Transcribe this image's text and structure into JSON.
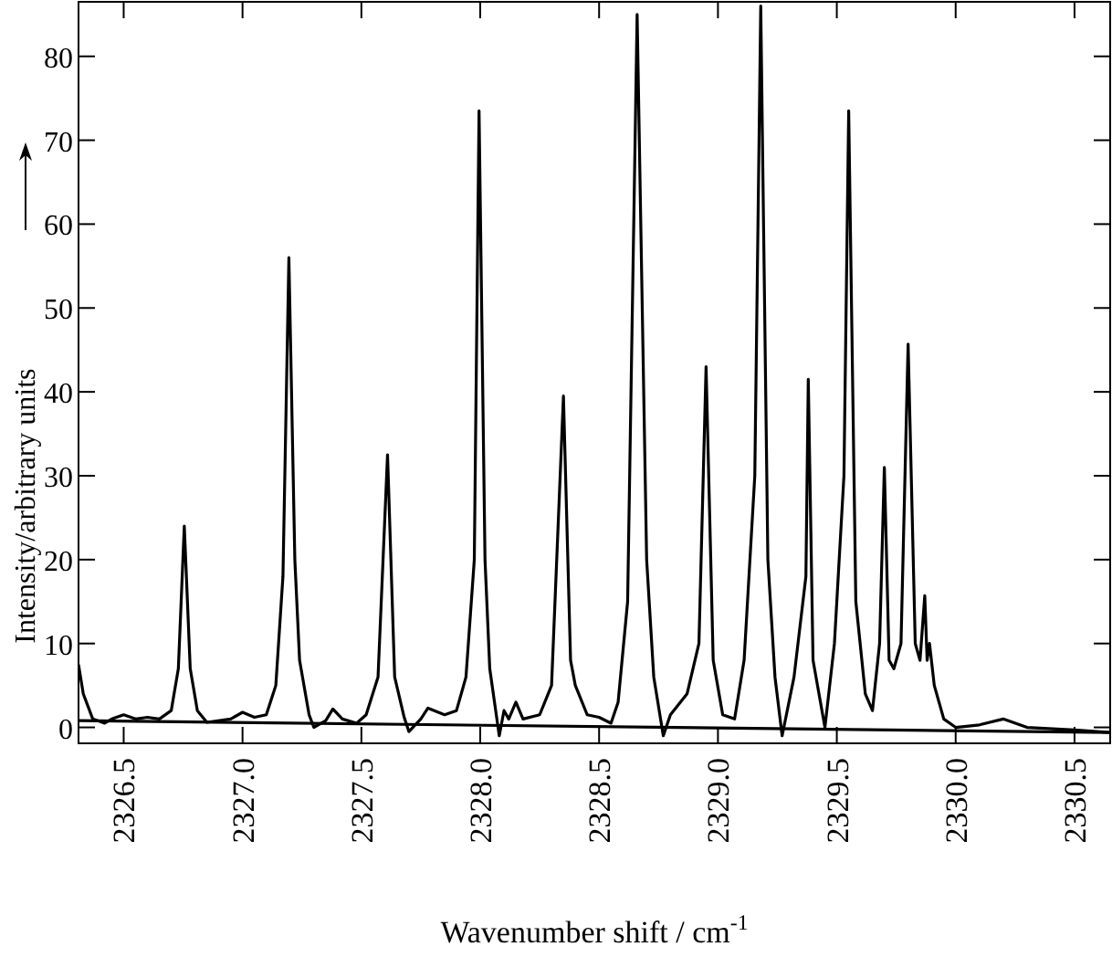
{
  "chart_data": {
    "type": "line",
    "xlabel": "Wavenumber shift / cm$^{-1}$",
    "ylabel": "Intensity/arbitrary units",
    "xlim": [
      2326.31,
      2330.65
    ],
    "ylim": [
      -1.9,
      86.5
    ],
    "xticks": [
      {
        "value": 2326.5,
        "label": "2326.5"
      },
      {
        "value": 2327,
        "label": "2327.0"
      },
      {
        "value": 2327.5,
        "label": "2327.5"
      },
      {
        "value": 2328,
        "label": "2328.0"
      },
      {
        "value": 2328.5,
        "label": "2328.5"
      },
      {
        "value": 2329,
        "label": "2329.0"
      },
      {
        "value": 2329.5,
        "label": "2329.5"
      },
      {
        "value": 2330,
        "label": "2330.0"
      },
      {
        "value": 2330.5,
        "label": "2330.5"
      }
    ],
    "yticks": [
      0,
      10,
      20,
      30,
      40,
      50,
      60,
      70,
      80
    ],
    "grid": false,
    "marker": "none",
    "line_style": "solid",
    "series": [
      {
        "color": "#000000",
        "x": [
          2326.31,
          2326.33,
          2326.37,
          2326.42,
          2326.45,
          2326.5,
          2326.55,
          2326.6,
          2326.65,
          2326.7,
          2326.73,
          2326.755,
          2326.78,
          2326.81,
          2326.85,
          2326.95,
          2327,
          2327.05,
          2327.1,
          2327.14,
          2327.17,
          2327.195,
          2327.22,
          2327.24,
          2327.28,
          2327.3,
          2327.35,
          2327.38,
          2327.42,
          2327.48,
          2327.52,
          2327.57,
          2327.61,
          2327.64,
          2327.68,
          2327.7,
          2327.75,
          2327.78,
          2327.85,
          2327.9,
          2327.94,
          2327.975,
          2327.995,
          2328.02,
          2328.04,
          2328.07,
          2328.08,
          2328.1,
          2328.12,
          2328.15,
          2328.18,
          2328.25,
          2328.3,
          2328.35,
          2328.38,
          2328.4,
          2328.45,
          2328.5,
          2328.55,
          2328.58,
          2328.62,
          2328.66,
          2328.7,
          2328.73,
          2328.77,
          2328.8,
          2328.87,
          2328.92,
          2328.95,
          2328.98,
          2329.02,
          2329.07,
          2329.11,
          2329.155,
          2329.18,
          2329.21,
          2329.24,
          2329.27,
          2329.32,
          2329.37,
          2329.38,
          2329.4,
          2329.45,
          2329.49,
          2329.53,
          2329.55,
          2329.58,
          2329.62,
          2329.65,
          2329.68,
          2329.7,
          2329.72,
          2329.74,
          2329.77,
          2329.8,
          2329.83,
          2329.85,
          2329.87,
          2329.88,
          2329.89,
          2329.91,
          2329.95,
          2330,
          2330.1,
          2330.2,
          2330.3,
          2330.5,
          2330.65
        ],
        "values": [
          7.5,
          4,
          1,
          0.5,
          1,
          1.5,
          1,
          1.2,
          1,
          2,
          7,
          24,
          7,
          2,
          0.6,
          1,
          1.8,
          1.2,
          1.5,
          5,
          18,
          56,
          20,
          8,
          1.5,
          0,
          0.8,
          2.2,
          1,
          0.5,
          1.5,
          6,
          32.5,
          6,
          1.2,
          -0.5,
          1,
          2.3,
          1.5,
          2,
          6,
          20,
          73.5,
          20,
          7,
          1,
          -1,
          2,
          1,
          3,
          1,
          1.5,
          5,
          39.5,
          8,
          5,
          1.5,
          1.2,
          0.5,
          3,
          15,
          85,
          20,
          6,
          -1,
          1.5,
          4,
          10,
          43,
          8,
          1.5,
          1,
          8,
          30,
          86,
          20,
          6,
          -1,
          6,
          18,
          41.5,
          8,
          0,
          10,
          30,
          73.5,
          15,
          4,
          2,
          10,
          31,
          8,
          7,
          10,
          45.7,
          10,
          8,
          15.7,
          8,
          10,
          5,
          1,
          0,
          0.3,
          1,
          0,
          -0.3,
          -0.6
        ]
      },
      {
        "color": "#000000",
        "x": [
          2326.31,
          2330.65
        ],
        "values": [
          0.8,
          -0.6
        ]
      }
    ]
  }
}
